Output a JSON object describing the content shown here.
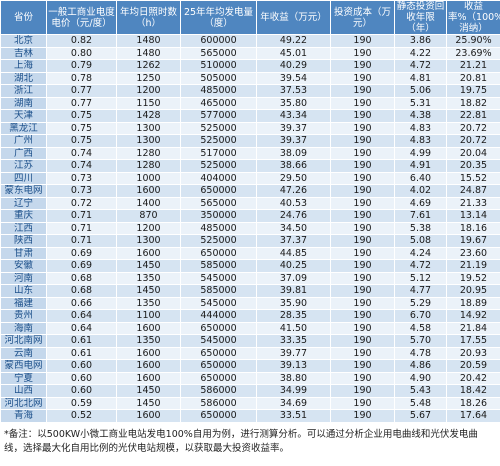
{
  "table": {
    "header": [
      "省份",
      "一般工商业电度电价（元/度）",
      "年均日照时数（h）",
      "25年年均发电量（度）",
      "年收益（万元）",
      "投资成本（万元）",
      "静态投资回收年限（年）",
      "收益率%（100%消纳）"
    ],
    "rows": [
      [
        "北京",
        "0.82",
        "1480",
        "600000",
        "49.22",
        "190",
        "3.86",
        "25.90%"
      ],
      [
        "吉林",
        "0.80",
        "1480",
        "565000",
        "45.01",
        "190",
        "4.22",
        "23.69%"
      ],
      [
        "上海",
        "0.79",
        "1262",
        "510000",
        "40.29",
        "190",
        "4.72",
        "21.21"
      ],
      [
        "湖北",
        "0.78",
        "1250",
        "505000",
        "39.54",
        "190",
        "4.81",
        "20.81"
      ],
      [
        "浙江",
        "0.77",
        "1200",
        "485000",
        "37.53",
        "190",
        "5.06",
        "19.75"
      ],
      [
        "湖南",
        "0.77",
        "1150",
        "465000",
        "35.80",
        "190",
        "5.31",
        "18.82"
      ],
      [
        "天津",
        "0.75",
        "1428",
        "577000",
        "43.34",
        "190",
        "4.38",
        "22.81"
      ],
      [
        "黑龙江",
        "0.75",
        "1300",
        "525000",
        "39.37",
        "190",
        "4.83",
        "20.72"
      ],
      [
        "广州",
        "0.75",
        "1300",
        "525000",
        "39.37",
        "190",
        "4.83",
        "20.72"
      ],
      [
        "广西",
        "0.74",
        "1280",
        "517000",
        "38.09",
        "190",
        "4.99",
        "20.04"
      ],
      [
        "江苏",
        "0.74",
        "1280",
        "525000",
        "38.66",
        "190",
        "4.91",
        "20.35"
      ],
      [
        "四川",
        "0.73",
        "1000",
        "404000",
        "29.50",
        "190",
        "6.40",
        "15.52"
      ],
      [
        "蒙东电网",
        "0.73",
        "1600",
        "650000",
        "47.26",
        "190",
        "4.02",
        "24.87"
      ],
      [
        "辽宁",
        "0.72",
        "1400",
        "565000",
        "40.53",
        "190",
        "4.69",
        "21.33"
      ],
      [
        "重庆",
        "0.71",
        "870",
        "350000",
        "24.76",
        "190",
        "7.61",
        "13.14"
      ],
      [
        "江西",
        "0.71",
        "1200",
        "485000",
        "34.50",
        "190",
        "5.38",
        "18.16"
      ],
      [
        "陕西",
        "0.71",
        "1300",
        "525000",
        "37.37",
        "190",
        "5.08",
        "19.67"
      ],
      [
        "甘肃",
        "0.69",
        "1600",
        "650000",
        "44.85",
        "190",
        "4.24",
        "23.60"
      ],
      [
        "安徽",
        "0.69",
        "1450",
        "585000",
        "40.25",
        "190",
        "4.72",
        "21.19"
      ],
      [
        "河南",
        "0.68",
        "1350",
        "545000",
        "37.09",
        "190",
        "5.12",
        "19.52"
      ],
      [
        "山东",
        "0.68",
        "1450",
        "585000",
        "39.81",
        "190",
        "4.77",
        "20.95"
      ],
      [
        "福建",
        "0.66",
        "1350",
        "545000",
        "35.90",
        "190",
        "5.29",
        "18.89"
      ],
      [
        "贵州",
        "0.64",
        "1100",
        "444000",
        "28.35",
        "190",
        "6.70",
        "14.92"
      ],
      [
        "海南",
        "0.64",
        "1600",
        "650000",
        "41.50",
        "190",
        "4.58",
        "21.84"
      ],
      [
        "河北南网",
        "0.61",
        "1350",
        "545000",
        "33.35",
        "190",
        "5.70",
        "17.55"
      ],
      [
        "云南",
        "0.61",
        "1600",
        "650000",
        "39.77",
        "190",
        "4.78",
        "20.93"
      ],
      [
        "蒙西电网",
        "0.60",
        "1600",
        "650000",
        "39.13",
        "190",
        "4.86",
        "20.59"
      ],
      [
        "宁夏",
        "0.60",
        "1600",
        "650000",
        "38.80",
        "190",
        "4.90",
        "20.42"
      ],
      [
        "山西",
        "0.60",
        "1450",
        "586000",
        "34.99",
        "190",
        "5.43",
        "18.42"
      ],
      [
        "河北北网",
        "0.59",
        "1450",
        "586000",
        "34.69",
        "190",
        "5.48",
        "18.26"
      ],
      [
        "青海",
        "0.52",
        "1600",
        "650000",
        "33.51",
        "190",
        "5.67",
        "17.64"
      ]
    ]
  },
  "note": "*备注：以500KW小微工商业电站发电100%自用为例，进行测算分析。可以通过分析企业用电曲线和光伏发电曲线，选择最大化自用比例的光伏电站规模，以获取最大投资收益率。"
}
